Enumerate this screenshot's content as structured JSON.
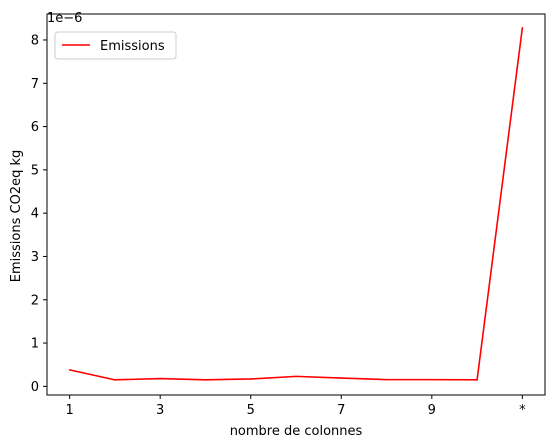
{
  "chart_data": {
    "type": "line",
    "title": "",
    "xlabel": "nombre de colonnes",
    "ylabel": "Emissions CO2eq kg",
    "y_offset_label": "1e−6",
    "y_scale_exponent": -6,
    "categories": [
      "1",
      "2",
      "3",
      "4",
      "5",
      "6",
      "7",
      "8",
      "9",
      "10",
      "*"
    ],
    "x_tick_labels": [
      "1",
      "3",
      "5",
      "7",
      "9",
      "*"
    ],
    "y_ticks": [
      0,
      1,
      2,
      3,
      4,
      5,
      6,
      7,
      8
    ],
    "ylim": [
      -2e-07,
      8.6e-06
    ],
    "grid": false,
    "legend_position": "top-left",
    "series": [
      {
        "name": "Emissions",
        "color": "#ff0000",
        "values": [
          3.8e-07,
          1.5e-07,
          1.8e-07,
          1.5e-07,
          1.7e-07,
          2.3e-07,
          1.9e-07,
          1.55e-07,
          1.55e-07,
          1.5e-07,
          8.28e-06
        ]
      }
    ]
  }
}
